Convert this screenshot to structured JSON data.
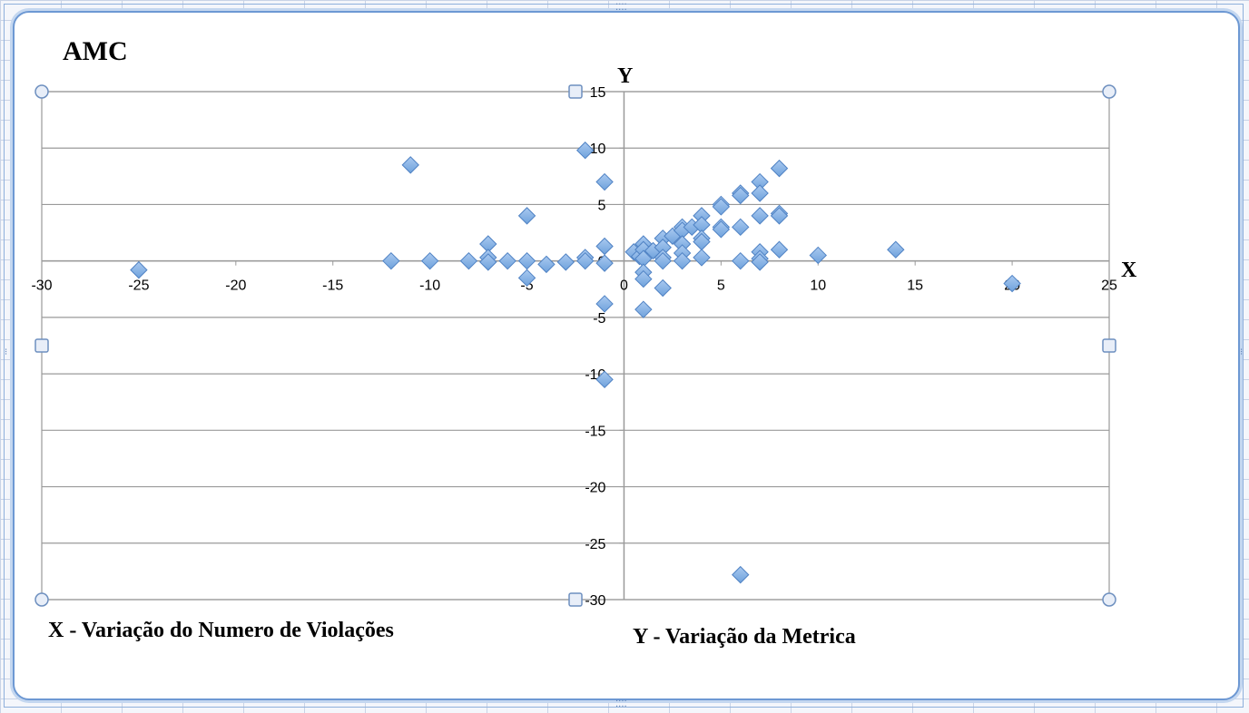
{
  "chart_data": {
    "type": "scatter",
    "title": "AMC",
    "x_axis_name": "X",
    "y_axis_name": "Y",
    "x_caption": "X - Variação do Numero de Violações",
    "y_caption": "Y - Variação da Metrica",
    "xlim": [
      -30,
      25
    ],
    "ylim": [
      -30,
      15
    ],
    "x_ticks": [
      -30,
      -25,
      -20,
      -15,
      -10,
      -5,
      0,
      5,
      10,
      15,
      20,
      25
    ],
    "y_ticks": [
      15,
      10,
      5,
      0,
      -5,
      -10,
      -15,
      -20,
      -25,
      -30
    ],
    "grid": "horizontal",
    "marker_color": "#6fa2dc",
    "points": [
      {
        "x": -25,
        "y": -0.8
      },
      {
        "x": -12,
        "y": 0
      },
      {
        "x": -11,
        "y": 8.5
      },
      {
        "x": -10,
        "y": 0
      },
      {
        "x": -8,
        "y": 0
      },
      {
        "x": -7,
        "y": 1.5
      },
      {
        "x": -7,
        "y": 0.3
      },
      {
        "x": -7,
        "y": -0.1
      },
      {
        "x": -6,
        "y": 0
      },
      {
        "x": -5,
        "y": 4
      },
      {
        "x": -5,
        "y": 0
      },
      {
        "x": -5,
        "y": -1.5
      },
      {
        "x": -4,
        "y": -0.3
      },
      {
        "x": -3,
        "y": -0.1
      },
      {
        "x": -2,
        "y": 9.8
      },
      {
        "x": -2,
        "y": 0.3
      },
      {
        "x": -2,
        "y": 0
      },
      {
        "x": -1,
        "y": 7
      },
      {
        "x": -1,
        "y": 1.3
      },
      {
        "x": -1,
        "y": -0.2
      },
      {
        "x": -1,
        "y": -3.8
      },
      {
        "x": -1,
        "y": -10.5
      },
      {
        "x": 0.5,
        "y": 0.8
      },
      {
        "x": 0.8,
        "y": 0.4
      },
      {
        "x": 1,
        "y": 1.5
      },
      {
        "x": 1,
        "y": 1
      },
      {
        "x": 1,
        "y": 0.2
      },
      {
        "x": 1,
        "y": -1
      },
      {
        "x": 1,
        "y": -1.6
      },
      {
        "x": 1,
        "y": -4.3
      },
      {
        "x": 1.5,
        "y": 0.9
      },
      {
        "x": 2,
        "y": 2
      },
      {
        "x": 2,
        "y": 1.2
      },
      {
        "x": 2,
        "y": 0.3
      },
      {
        "x": 2,
        "y": 0
      },
      {
        "x": 2,
        "y": -2.4
      },
      {
        "x": 2.5,
        "y": 2.2
      },
      {
        "x": 3,
        "y": 3
      },
      {
        "x": 3,
        "y": 2.7
      },
      {
        "x": 3,
        "y": 1.5
      },
      {
        "x": 3,
        "y": 0.7
      },
      {
        "x": 3,
        "y": 0
      },
      {
        "x": 3.5,
        "y": 3
      },
      {
        "x": 4,
        "y": 4
      },
      {
        "x": 4,
        "y": 3.2
      },
      {
        "x": 4,
        "y": 2
      },
      {
        "x": 4,
        "y": 1.7
      },
      {
        "x": 4,
        "y": 0.3
      },
      {
        "x": 5,
        "y": 5
      },
      {
        "x": 5,
        "y": 4.8
      },
      {
        "x": 5,
        "y": 3
      },
      {
        "x": 5,
        "y": 2.8
      },
      {
        "x": 6,
        "y": 6
      },
      {
        "x": 6,
        "y": 5.8
      },
      {
        "x": 6,
        "y": 3
      },
      {
        "x": 6,
        "y": 0
      },
      {
        "x": 6,
        "y": -27.8
      },
      {
        "x": 7,
        "y": 7
      },
      {
        "x": 7,
        "y": 6
      },
      {
        "x": 7,
        "y": 4
      },
      {
        "x": 7,
        "y": 0.8
      },
      {
        "x": 7,
        "y": 0.2
      },
      {
        "x": 7,
        "y": -0.1
      },
      {
        "x": 8,
        "y": 8.2
      },
      {
        "x": 8,
        "y": 4.2
      },
      {
        "x": 8,
        "y": 4
      },
      {
        "x": 8,
        "y": 1
      },
      {
        "x": 10,
        "y": 0.5
      },
      {
        "x": 14,
        "y": 1
      },
      {
        "x": 20,
        "y": -2
      }
    ]
  }
}
